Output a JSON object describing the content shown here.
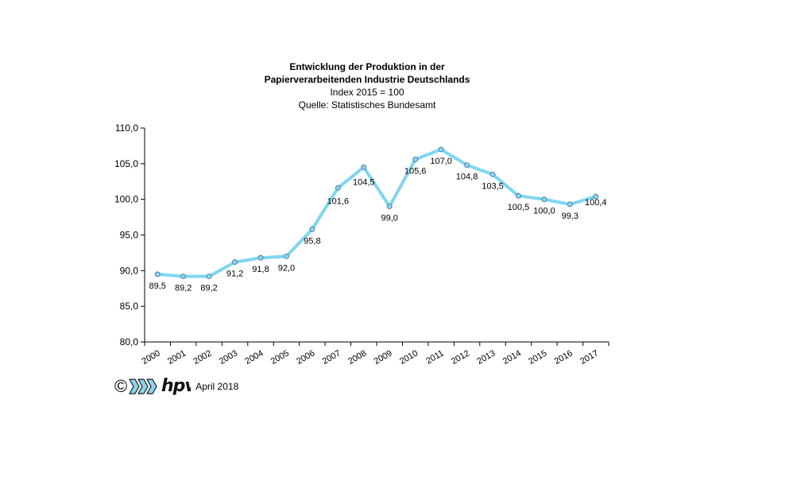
{
  "chart_data": {
    "type": "line",
    "title": "Entwicklung der Produktion in der",
    "title_line2": "Papierverarbeitenden Industrie Deutschlands",
    "subtitle": "Index 2015 = 100",
    "source": "Quelle: Statistisches Bundesamt",
    "categories": [
      "2000",
      "2001",
      "2002",
      "2003",
      "2004",
      "2005",
      "2006",
      "2007",
      "2008",
      "2009",
      "2010",
      "2011",
      "2012",
      "2013",
      "2014",
      "2015",
      "2016",
      "2017"
    ],
    "values": [
      89.5,
      89.2,
      89.2,
      91.2,
      91.8,
      92.0,
      95.8,
      101.6,
      104.5,
      99.0,
      105.6,
      107.0,
      104.8,
      103.5,
      100.5,
      100.0,
      99.3,
      100.4
    ],
    "value_labels": [
      "89,5",
      "89,2",
      "89,2",
      "91,2",
      "91,8",
      "92,0",
      "95,8",
      "101,6",
      "104,5",
      "99,0",
      "105,6",
      "107,0",
      "104,8",
      "103,5",
      "100,5",
      "100,0",
      "99,3",
      "100,4"
    ],
    "ylim": [
      80,
      110
    ],
    "yticks": [
      80,
      85,
      90,
      95,
      100,
      105,
      110
    ],
    "ytick_labels": [
      "80,0",
      "85,0",
      "90,0",
      "95,0",
      "100,0",
      "105,0",
      "110,0"
    ],
    "grid": false,
    "line_color": "#7fd6f0",
    "marker_color": "#8fd3ef",
    "marker_stroke": "#3a6d9a"
  },
  "footer": {
    "copyright": "©",
    "logo_text": "hpv",
    "date": "April 2018",
    "logo_color": "#8cd4ee"
  }
}
